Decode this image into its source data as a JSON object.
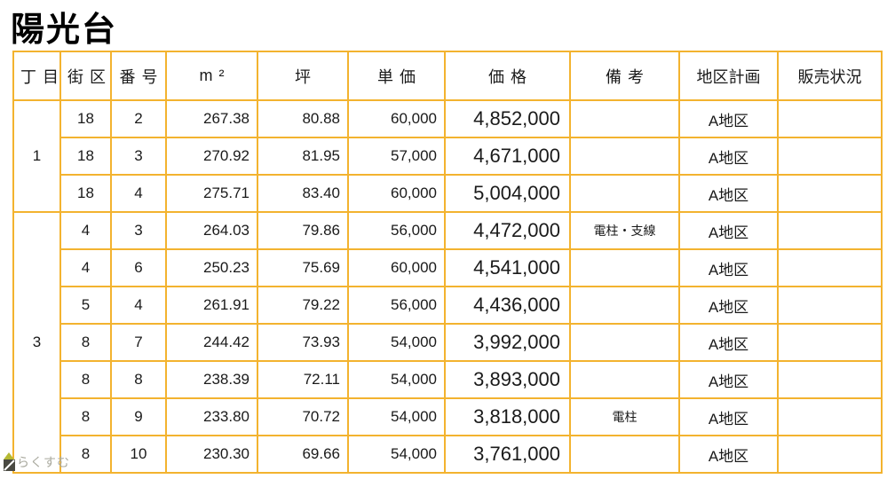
{
  "page": {
    "title": "陽光台"
  },
  "colors": {
    "border_gold": "#F3B32F",
    "text": "#1A1A1A",
    "watermark_text": "#A9A99E",
    "watermark_roof": "#B5B933",
    "watermark_square": "#4A4A42"
  },
  "watermark": {
    "label": "らくすむ",
    "icon": "rakusumu-logo-icon"
  },
  "table": {
    "headers": [
      "丁目",
      "街区",
      "番号",
      "m²",
      "坪",
      "単価",
      "価格",
      "備考",
      "地区計画",
      "販売状況"
    ],
    "groups": [
      {
        "chome": "1",
        "rows": [
          [
            "18",
            "2",
            "267.38",
            "80.88",
            "60,000",
            "4,852,000",
            "",
            "A地区",
            ""
          ],
          [
            "18",
            "3",
            "270.92",
            "81.95",
            "57,000",
            "4,671,000",
            "",
            "A地区",
            ""
          ],
          [
            "18",
            "4",
            "275.71",
            "83.40",
            "60,000",
            "5,004,000",
            "",
            "A地区",
            ""
          ]
        ]
      },
      {
        "chome": "3",
        "rows": [
          [
            "4",
            "3",
            "264.03",
            "79.86",
            "56,000",
            "4,472,000",
            "電柱・支線",
            "A地区",
            ""
          ],
          [
            "4",
            "6",
            "250.23",
            "75.69",
            "60,000",
            "4,541,000",
            "",
            "A地区",
            ""
          ],
          [
            "5",
            "4",
            "261.91",
            "79.22",
            "56,000",
            "4,436,000",
            "",
            "A地区",
            ""
          ],
          [
            "8",
            "7",
            "244.42",
            "73.93",
            "54,000",
            "3,992,000",
            "",
            "A地区",
            ""
          ],
          [
            "8",
            "8",
            "238.39",
            "72.11",
            "54,000",
            "3,893,000",
            "",
            "A地区",
            ""
          ],
          [
            "8",
            "9",
            "233.80",
            "70.72",
            "54,000",
            "3,818,000",
            "電柱",
            "A地区",
            ""
          ],
          [
            "8",
            "10",
            "230.30",
            "69.66",
            "54,000",
            "3,761,000",
            "",
            "A地区",
            ""
          ]
        ]
      }
    ]
  }
}
